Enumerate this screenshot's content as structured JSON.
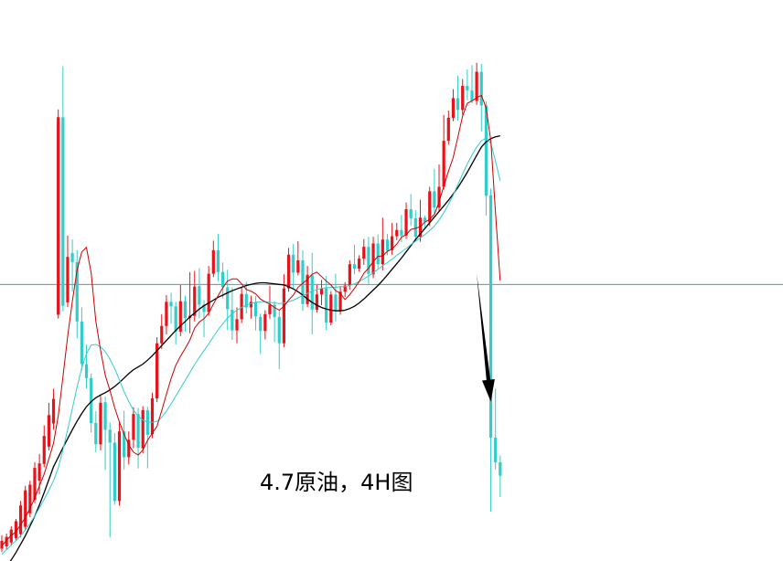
{
  "caption": "4.7原油，4H图",
  "chart_data": {
    "type": "candlestick",
    "title": "",
    "xlabel": "",
    "ylabel": "",
    "grid": false,
    "ylim": [
      0,
      100
    ],
    "colors": {
      "up": "#e8121b",
      "down": "#32cdc8",
      "ma_fast": "#cc0000",
      "ma_mid": "#33cccc",
      "ma_slow": "#000000",
      "hline": "#3a8a9a",
      "arrow": "#000000"
    },
    "reference_line": 49.3,
    "arrow": {
      "from": [
        101,
        51.3
      ],
      "to": [
        104,
        28.4
      ]
    },
    "candles": [
      [
        2.2,
        3.6,
        1.6,
        4.6
      ],
      [
        2.6,
        4.3,
        2.0,
        4.9
      ],
      [
        3.3,
        5.6,
        2.8,
        6.2
      ],
      [
        4.1,
        7.1,
        3.6,
        7.5
      ],
      [
        4.8,
        9.9,
        4.2,
        10.7
      ],
      [
        6.1,
        12.6,
        5.4,
        13.4
      ],
      [
        8.5,
        13.6,
        7.8,
        14.3
      ],
      [
        10.9,
        16.6,
        10.3,
        17.6
      ],
      [
        14.3,
        17.4,
        11.9,
        19.1
      ],
      [
        17.3,
        22.3,
        16.7,
        24.2
      ],
      [
        20.4,
        26.0,
        19.7,
        28.2
      ],
      [
        24.5,
        28.9,
        23.4,
        30.7
      ],
      [
        43.9,
        79.1,
        43.2,
        80.5
      ],
      [
        79.1,
        45.5,
        44.5,
        88.2
      ],
      [
        46.1,
        54.2,
        45.3,
        58.0
      ],
      [
        54.9,
        53.3,
        48.0,
        57.3
      ],
      [
        53.3,
        42.7,
        39.7,
        55.4
      ],
      [
        42.7,
        35.1,
        34.0,
        45.2
      ],
      [
        35.1,
        32.6,
        30.8,
        38.6
      ],
      [
        32.6,
        24.6,
        22.9,
        33.4
      ],
      [
        24.6,
        20.8,
        19.4,
        26.7
      ],
      [
        20.8,
        28.2,
        19.7,
        29.6
      ],
      [
        28.3,
        23.4,
        16.2,
        29.3
      ],
      [
        23.4,
        21.1,
        4.2,
        24.7
      ],
      [
        21.1,
        10.7,
        10.0,
        22.8
      ],
      [
        10.7,
        23.1,
        9.9,
        24.7
      ],
      [
        23.1,
        18.5,
        16.3,
        26.8
      ],
      [
        18.5,
        21.6,
        17.2,
        23.1
      ],
      [
        21.6,
        26.2,
        20.1,
        27.4
      ],
      [
        26.2,
        20.2,
        16.5,
        27.3
      ],
      [
        20.1,
        26.9,
        19.2,
        27.6
      ],
      [
        26.9,
        22.5,
        16.5,
        27.5
      ],
      [
        22.6,
        29.0,
        21.9,
        30.0
      ],
      [
        29.0,
        38.8,
        28.3,
        39.9
      ],
      [
        38.8,
        41.9,
        37.8,
        44.0
      ],
      [
        41.9,
        46.2,
        40.4,
        47.4
      ],
      [
        46.2,
        45.4,
        42.3,
        47.8
      ],
      [
        45.4,
        40.9,
        38.6,
        46.2
      ],
      [
        40.9,
        46.3,
        40.1,
        49.2
      ],
      [
        46.3,
        43.3,
        40.9,
        47.3
      ],
      [
        43.3,
        43.7,
        40.6,
        51.5
      ],
      [
        43.7,
        48.9,
        42.7,
        51.7
      ],
      [
        49.0,
        45.7,
        43.3,
        52.2
      ],
      [
        45.7,
        44.4,
        39.9,
        46.5
      ],
      [
        44.4,
        51.2,
        43.7,
        52.6
      ],
      [
        51.2,
        55.4,
        50.6,
        57.1
      ],
      [
        55.4,
        51.5,
        49.9,
        58.3
      ],
      [
        51.5,
        48.8,
        46.8,
        53.2
      ],
      [
        48.8,
        44.9,
        41.2,
        51.9
      ],
      [
        44.8,
        41.1,
        39.4,
        48.8
      ],
      [
        41.1,
        43.1,
        38.8,
        45.2
      ],
      [
        43.1,
        47.6,
        42.4,
        48.7
      ],
      [
        47.6,
        45.2,
        44.1,
        49.8
      ],
      [
        45.2,
        46.2,
        43.2,
        47.3
      ],
      [
        46.2,
        43.6,
        41.1,
        47.2
      ],
      [
        43.5,
        41.0,
        36.9,
        44.1
      ],
      [
        41.0,
        44.0,
        39.5,
        44.7
      ],
      [
        44.0,
        45.7,
        43.2,
        49.0
      ],
      [
        45.7,
        43.5,
        39.0,
        46.3
      ],
      [
        43.5,
        38.8,
        34.2,
        44.6
      ],
      [
        38.8,
        48.6,
        38.1,
        51.1
      ],
      [
        48.6,
        54.6,
        48.0,
        55.8
      ],
      [
        54.6,
        51.4,
        48.6,
        56.5
      ],
      [
        51.4,
        53.6,
        50.9,
        57.0
      ],
      [
        53.6,
        45.8,
        44.6,
        55.4
      ],
      [
        45.8,
        51.0,
        45.2,
        52.6
      ],
      [
        51.0,
        44.8,
        40.4,
        54.9
      ],
      [
        44.8,
        47.5,
        44.3,
        49.2
      ],
      [
        47.5,
        48.6,
        45.6,
        50.1
      ],
      [
        48.6,
        42.5,
        41.2,
        50.8
      ],
      [
        42.5,
        47.5,
        42.0,
        48.1
      ],
      [
        47.5,
        44.6,
        42.7,
        51.2
      ],
      [
        44.6,
        48.0,
        43.9,
        49.0
      ],
      [
        48.0,
        49.1,
        47.1,
        49.7
      ],
      [
        49.1,
        52.9,
        48.4,
        53.6
      ],
      [
        52.9,
        52.1,
        51.1,
        56.4
      ],
      [
        52.1,
        53.9,
        51.6,
        54.5
      ],
      [
        53.9,
        56.0,
        52.8,
        57.4
      ],
      [
        56.0,
        51.2,
        49.4,
        57.8
      ],
      [
        51.1,
        56.6,
        50.4,
        57.8
      ],
      [
        56.6,
        52.9,
        52.2,
        58.2
      ],
      [
        52.9,
        57.3,
        51.8,
        61.2
      ],
      [
        57.3,
        55.3,
        54.5,
        58.3
      ],
      [
        55.4,
        57.9,
        54.6,
        60.3
      ],
      [
        57.9,
        59.0,
        57.2,
        60.3
      ],
      [
        59.0,
        58.0,
        56.8,
        61.7
      ],
      [
        58.0,
        62.7,
        57.4,
        63.9
      ],
      [
        62.7,
        61.1,
        59.8,
        65.4
      ],
      [
        61.1,
        57.8,
        57.1,
        62.5
      ],
      [
        57.8,
        61.2,
        56.9,
        64.4
      ],
      [
        61.2,
        60.4,
        59.4,
        61.6
      ],
      [
        60.4,
        65.9,
        59.7,
        66.7
      ],
      [
        65.9,
        63.0,
        61.7,
        69.9
      ],
      [
        63.0,
        66.7,
        62.3,
        70.7
      ],
      [
        66.7,
        74.9,
        66.2,
        79.5
      ],
      [
        74.9,
        79.0,
        74.2,
        80.3
      ],
      [
        79.0,
        82.5,
        78.4,
        84.1
      ],
      [
        82.5,
        80.4,
        78.5,
        86.5
      ],
      [
        80.4,
        84.7,
        79.5,
        85.9
      ],
      [
        84.7,
        83.9,
        82.1,
        87.6
      ],
      [
        83.9,
        82.0,
        81.6,
        88.4
      ],
      [
        82.0,
        87.2,
        81.3,
        88.8
      ],
      [
        87.2,
        81.2,
        76.6,
        88.6
      ],
      [
        81.2,
        65.1,
        61.6,
        81.9
      ],
      [
        65.2,
        22.0,
        8.8,
        66.4
      ],
      [
        22.0,
        17.6,
        16.3,
        30.7
      ],
      [
        17.6,
        15.2,
        11.4,
        18.8
      ]
    ],
    "ma_fast": [
      2.7,
      3.7,
      4.6,
      5.2,
      6.5,
      7.7,
      9.4,
      11.2,
      13.4,
      15.5,
      18.2,
      21.0,
      25.9,
      32.8,
      40.1,
      46.3,
      51.8,
      55.1,
      55.9,
      51.3,
      42.7,
      37.6,
      33.1,
      30.4,
      27.3,
      24.8,
      22.6,
      20.7,
      19.4,
      18.9,
      19.8,
      21.5,
      22.8,
      24.0,
      26.8,
      29.7,
      32.5,
      34.9,
      36.5,
      37.9,
      39.4,
      41.5,
      42.6,
      43.2,
      44.2,
      45.8,
      47.3,
      48.7,
      49.9,
      50.3,
      50.3,
      49.4,
      48.4,
      48.1,
      47.6,
      46.7,
      46.2,
      45.8,
      45.2,
      44.7,
      45.4,
      46.5,
      47.4,
      48.8,
      49.5,
      50.2,
      51.1,
      51.5,
      50.7,
      49.9,
      49.2,
      48.2,
      47.7,
      46.6,
      47.5,
      48.6,
      49.8,
      51.3,
      52.2,
      53.4,
      54.3,
      54.4,
      55.2,
      55.6,
      56.5,
      57.7,
      58.2,
      59.1,
      59.3,
      59.6,
      60.4,
      60.9,
      61.8,
      64.0,
      66.8,
      69.5,
      71.9,
      75.6,
      79.3,
      81.6,
      82.0,
      82.6,
      83.0,
      80.8,
      74.9,
      62.1,
      50.0
    ],
    "ma_mid": [
      1.2,
      2.0,
      2.8,
      3.6,
      4.5,
      5.5,
      6.7,
      8.0,
      9.5,
      11.0,
      12.6,
      14.3,
      16.6,
      19.8,
      23.4,
      27.2,
      31.0,
      34.4,
      36.9,
      38.5,
      38.6,
      38.2,
      37.3,
      36.0,
      34.3,
      32.3,
      30.2,
      28.4,
      26.9,
      25.8,
      25.1,
      24.8,
      24.7,
      24.9,
      25.6,
      26.7,
      28.0,
      29.4,
      30.8,
      32.2,
      33.6,
      35.0,
      36.3,
      37.5,
      38.7,
      40.0,
      41.2,
      42.3,
      43.3,
      44.1,
      44.7,
      45.2,
      45.6,
      45.9,
      46.1,
      46.2,
      46.2,
      46.1,
      46.0,
      45.9,
      46.0,
      46.2,
      46.5,
      46.9,
      47.3,
      47.7,
      48.1,
      48.4,
      48.6,
      48.7,
      48.8,
      48.8,
      48.9,
      48.9,
      49.1,
      49.4,
      49.8,
      50.3,
      50.8,
      51.4,
      52.0,
      52.6,
      53.2,
      53.8,
      54.5,
      55.1,
      55.7,
      56.4,
      57.0,
      57.6,
      58.2,
      58.9,
      59.7,
      60.8,
      62.1,
      63.6,
      65.2,
      67.1,
      69.0,
      70.8,
      72.4,
      73.8,
      74.9,
      75.4,
      74.5,
      71.3,
      67.8
    ],
    "ma_slow": [
      -2.0,
      -1.0,
      0.2,
      1.5,
      3.0,
      4.5,
      6.2,
      8.0,
      10.0,
      12.2,
      14.5,
      16.8,
      18.5,
      20.2,
      21.8,
      23.4,
      24.9,
      26.3,
      27.5,
      28.4,
      29.1,
      29.6,
      30.0,
      30.5,
      31.1,
      31.8,
      32.6,
      33.4,
      34.1,
      34.6,
      35.1,
      35.8,
      36.6,
      37.5,
      38.4,
      39.3,
      40.2,
      41.1,
      41.9,
      42.7,
      43.5,
      44.2,
      44.9,
      45.5,
      46.0,
      46.5,
      47.0,
      47.4,
      47.8,
      48.2,
      48.5,
      48.8,
      49.1,
      49.3,
      49.5,
      49.6,
      49.6,
      49.5,
      49.4,
      49.3,
      49.2,
      48.9,
      48.5,
      48.0,
      47.4,
      46.7,
      46.1,
      45.6,
      45.2,
      44.9,
      44.7,
      44.6,
      44.6,
      44.7,
      45.0,
      45.4,
      46.0,
      46.7,
      47.5,
      48.3,
      49.1,
      50.0,
      51.0,
      52.0,
      53.0,
      54.0,
      55.1,
      56.2,
      57.3,
      58.3,
      59.3,
      60.3,
      61.3,
      62.3,
      63.3,
      64.3,
      65.4,
      66.6,
      67.9,
      69.3,
      70.8,
      72.3,
      73.8,
      74.7,
      75.3,
      75.6,
      75.8
    ]
  }
}
